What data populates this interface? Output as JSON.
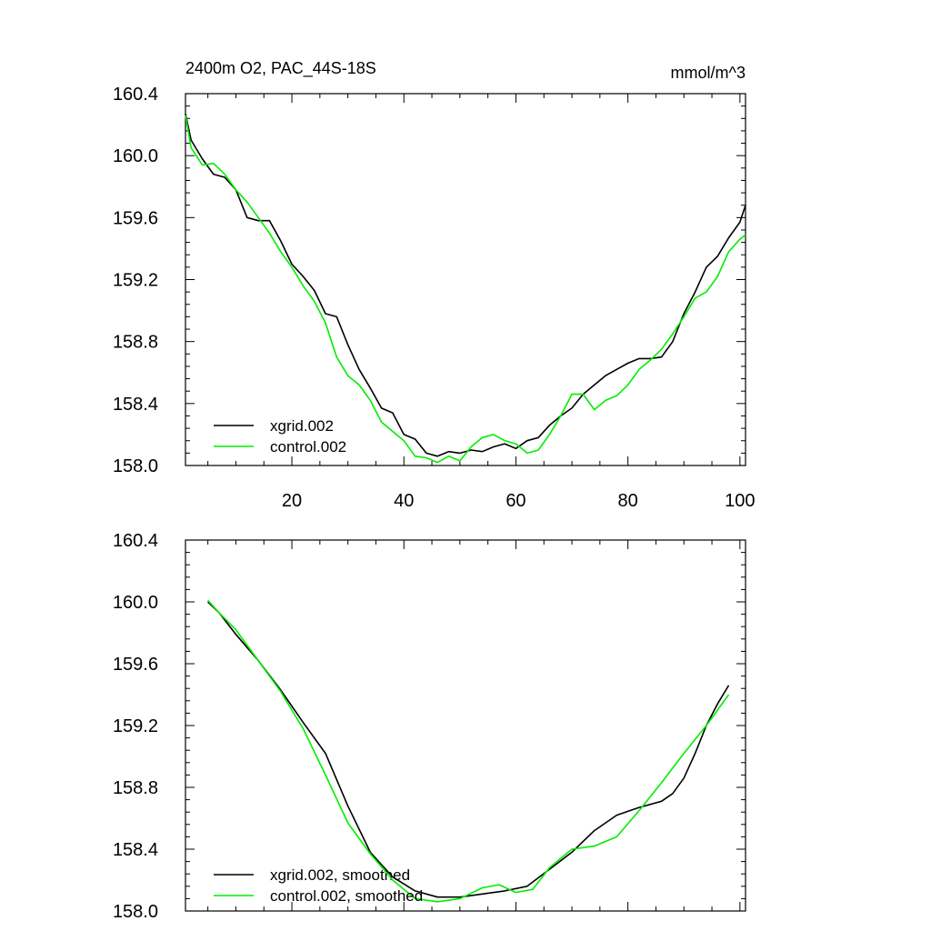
{
  "figure": {
    "title_left": "2400m O2, PAC_44S-18S",
    "title_right": "mmol/m^3"
  },
  "chart_data": [
    {
      "type": "line",
      "title": "2400m O2, PAC_44S-18S",
      "units": "mmol/m^3",
      "xlim": [
        1,
        101
      ],
      "ylim": [
        158.0,
        160.4
      ],
      "xticks": [
        20,
        40,
        60,
        80,
        100
      ],
      "xtick_labels": [
        "20",
        "40",
        "60",
        "80",
        "100"
      ],
      "yticks": [
        158.0,
        158.4,
        158.8,
        159.2,
        159.6,
        160.0,
        160.4
      ],
      "ytick_labels": [
        "158.0",
        "158.4",
        "158.8",
        "159.2",
        "159.6",
        "160.0",
        "160.4"
      ],
      "grid": false,
      "legend_position": "bottom-left",
      "series": [
        {
          "name": "xgrid.002",
          "color": "#000000",
          "x": [
            1,
            2,
            4,
            6,
            8,
            10,
            12,
            14,
            16,
            18,
            20,
            22,
            24,
            26,
            28,
            30,
            32,
            34,
            36,
            38,
            40,
            42,
            44,
            46,
            48,
            50,
            52,
            54,
            56,
            58,
            60,
            62,
            64,
            66,
            68,
            70,
            72,
            74,
            76,
            78,
            80,
            82,
            84,
            86,
            88,
            90,
            92,
            94,
            96,
            98,
            100,
            101
          ],
          "y": [
            160.27,
            160.1,
            159.98,
            159.88,
            159.86,
            159.78,
            159.6,
            159.58,
            159.58,
            159.45,
            159.3,
            159.22,
            159.13,
            158.98,
            158.96,
            158.78,
            158.62,
            158.5,
            158.37,
            158.34,
            158.2,
            158.17,
            158.08,
            158.06,
            158.09,
            158.08,
            158.1,
            158.09,
            158.12,
            158.14,
            158.11,
            158.16,
            158.18,
            158.26,
            158.32,
            158.37,
            158.46,
            158.52,
            158.58,
            158.62,
            158.66,
            158.69,
            158.69,
            158.7,
            158.8,
            158.98,
            159.12,
            159.28,
            159.35,
            159.47,
            159.57,
            159.68
          ]
        },
        {
          "name": "control.002",
          "color": "#00ee00",
          "x": [
            1,
            2,
            4,
            6,
            8,
            10,
            12,
            14,
            16,
            18,
            20,
            22,
            24,
            26,
            28,
            30,
            32,
            34,
            36,
            38,
            40,
            42,
            44,
            46,
            48,
            50,
            52,
            54,
            56,
            58,
            60,
            62,
            64,
            66,
            68,
            70,
            72,
            74,
            76,
            78,
            80,
            82,
            84,
            86,
            88,
            90,
            92,
            94,
            96,
            98,
            100,
            101
          ],
          "y": [
            160.26,
            160.05,
            159.94,
            159.95,
            159.88,
            159.78,
            159.7,
            159.6,
            159.5,
            159.38,
            159.28,
            159.16,
            159.06,
            158.92,
            158.7,
            158.58,
            158.52,
            158.42,
            158.28,
            158.22,
            158.16,
            158.06,
            158.05,
            158.02,
            158.06,
            158.03,
            158.12,
            158.18,
            158.2,
            158.16,
            158.14,
            158.08,
            158.1,
            158.2,
            158.32,
            158.46,
            158.46,
            158.36,
            158.42,
            158.45,
            158.52,
            158.62,
            158.68,
            158.75,
            158.85,
            158.96,
            159.08,
            159.12,
            159.22,
            159.38,
            159.46,
            159.49
          ]
        }
      ]
    },
    {
      "type": "line",
      "xlim": [
        1,
        101
      ],
      "ylim": [
        158.0,
        160.4
      ],
      "xticks": [
        20,
        40,
        60,
        80,
        100
      ],
      "yticks": [
        158.0,
        158.4,
        158.8,
        159.2,
        159.6,
        160.0,
        160.4
      ],
      "ytick_labels": [
        "158.0",
        "158.4",
        "158.8",
        "159.2",
        "159.6",
        "160.0",
        "160.4"
      ],
      "grid": false,
      "legend_position": "bottom-left",
      "series": [
        {
          "name": "xgrid.002, smoothed",
          "color": "#000000",
          "x": [
            5,
            7,
            10,
            14,
            18,
            22,
            26,
            30,
            34,
            38,
            42,
            46,
            50,
            54,
            58,
            62,
            66,
            70,
            74,
            78,
            82,
            86,
            88,
            90,
            92,
            94,
            96,
            98
          ],
          "y": [
            160.0,
            159.93,
            159.79,
            159.62,
            159.43,
            159.22,
            159.02,
            158.68,
            158.38,
            158.22,
            158.13,
            158.09,
            158.09,
            158.11,
            158.13,
            158.16,
            158.27,
            158.38,
            158.52,
            158.62,
            158.67,
            158.71,
            158.76,
            158.86,
            159.02,
            159.2,
            159.34,
            159.46
          ]
        },
        {
          "name": "control.002, smoothed",
          "color": "#00ee00",
          "x": [
            5,
            7,
            10,
            14,
            18,
            22,
            26,
            30,
            34,
            38,
            42,
            46,
            50,
            54,
            57,
            60,
            63,
            66,
            70,
            74,
            78,
            82,
            86,
            90,
            94,
            98
          ],
          "y": [
            160.01,
            159.93,
            159.82,
            159.62,
            159.42,
            159.18,
            158.88,
            158.57,
            158.37,
            158.2,
            158.08,
            158.06,
            158.08,
            158.15,
            158.17,
            158.12,
            158.14,
            158.28,
            158.4,
            158.42,
            158.48,
            158.65,
            158.83,
            159.02,
            159.2,
            159.4
          ]
        }
      ]
    }
  ]
}
